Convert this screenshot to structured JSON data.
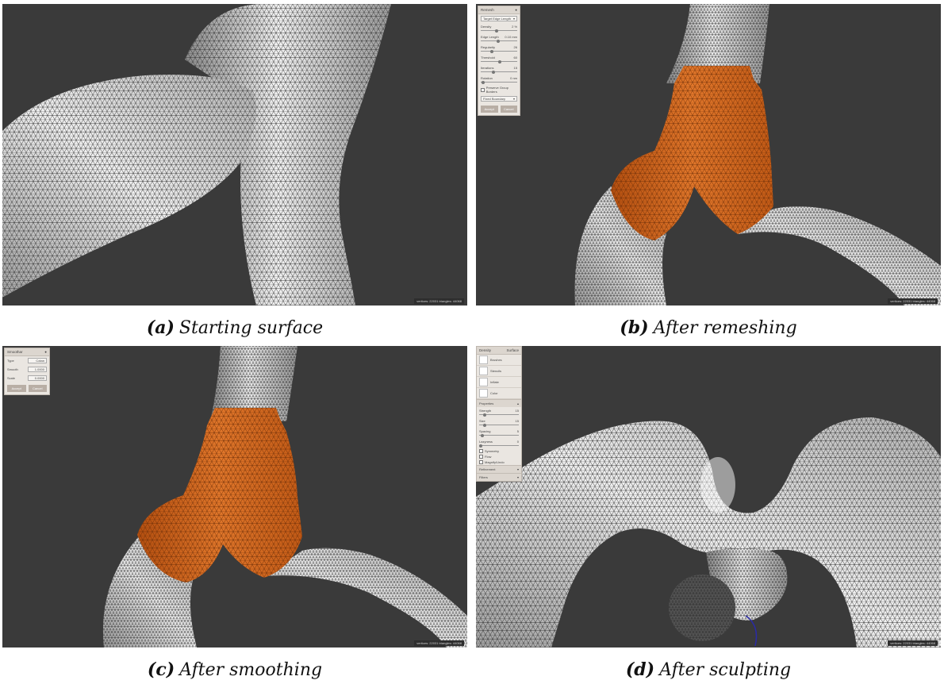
{
  "figure": {
    "panels": [
      {
        "id": "a",
        "label": "(a)",
        "caption": "Starting surface",
        "status": "vertices: 22031 triangles: 44068"
      },
      {
        "id": "b",
        "label": "(b)",
        "caption": "After remeshing",
        "status": "vertices: 22031 triangles: 44068"
      },
      {
        "id": "c",
        "label": "(c)",
        "caption": "After smoothing",
        "status": "vertices: 22031 triangles: 44068"
      },
      {
        "id": "d",
        "label": "(d)",
        "caption": "After sculpting",
        "status": "vertices: 22031 triangles: 44068"
      }
    ]
  },
  "remesh_panel": {
    "title": "Remesh",
    "mode": "Target Edge Length",
    "density_label": "Density",
    "density_value": "2",
    "density_unit": "%",
    "edge_label": "Edge Length",
    "edge_value": "0.10",
    "edge_unit": "mm",
    "regularity_label": "Regularity",
    "regularity_value": "26",
    "threshold_label": "Threshold",
    "threshold_value": "60",
    "iterations_label": "Iterations",
    "iterations_value": "15",
    "rotation_label": "Rotation",
    "rotation_value": "0",
    "rotation_unit": "nm",
    "preserve_label": "Preserve Group Borders",
    "boundary_mode": "Fixed Boundary",
    "accept": "Accept",
    "cancel": "Cancel"
  },
  "smooth_panel": {
    "title": "Smoothar",
    "type_label": "Type",
    "type_value": "Cotan",
    "smooth_label": "Smooth",
    "smooth_value": "1.0000",
    "scale_label": "Scale",
    "scale_value": "0.0000",
    "accept": "Accept",
    "cancel": "Cancel"
  },
  "sculpt_panel": {
    "header_left": "Density",
    "header_right": "Surface",
    "tools": [
      "Brushes",
      "Stencils",
      "Inflate",
      "Color"
    ],
    "properties_title": "Properties",
    "strength_label": "Strength",
    "strength_value": "15",
    "size_label": "Size",
    "size_value": "15",
    "spacing_label": "Spacing",
    "spacing_value": "5",
    "lazyness_label": "Lazyness",
    "lazyness_value": "0",
    "symmetry_label": "Symmetry",
    "flow_label": "Flow",
    "magnify_label": "Magnify/Undo",
    "refinement_label": "Refinement",
    "filters_label": "Filters"
  },
  "colors": {
    "background": "#3a3a3a",
    "mesh_surface": "#d6d6d6",
    "selection": "#d4651a",
    "wire": "#2a2a2a"
  }
}
